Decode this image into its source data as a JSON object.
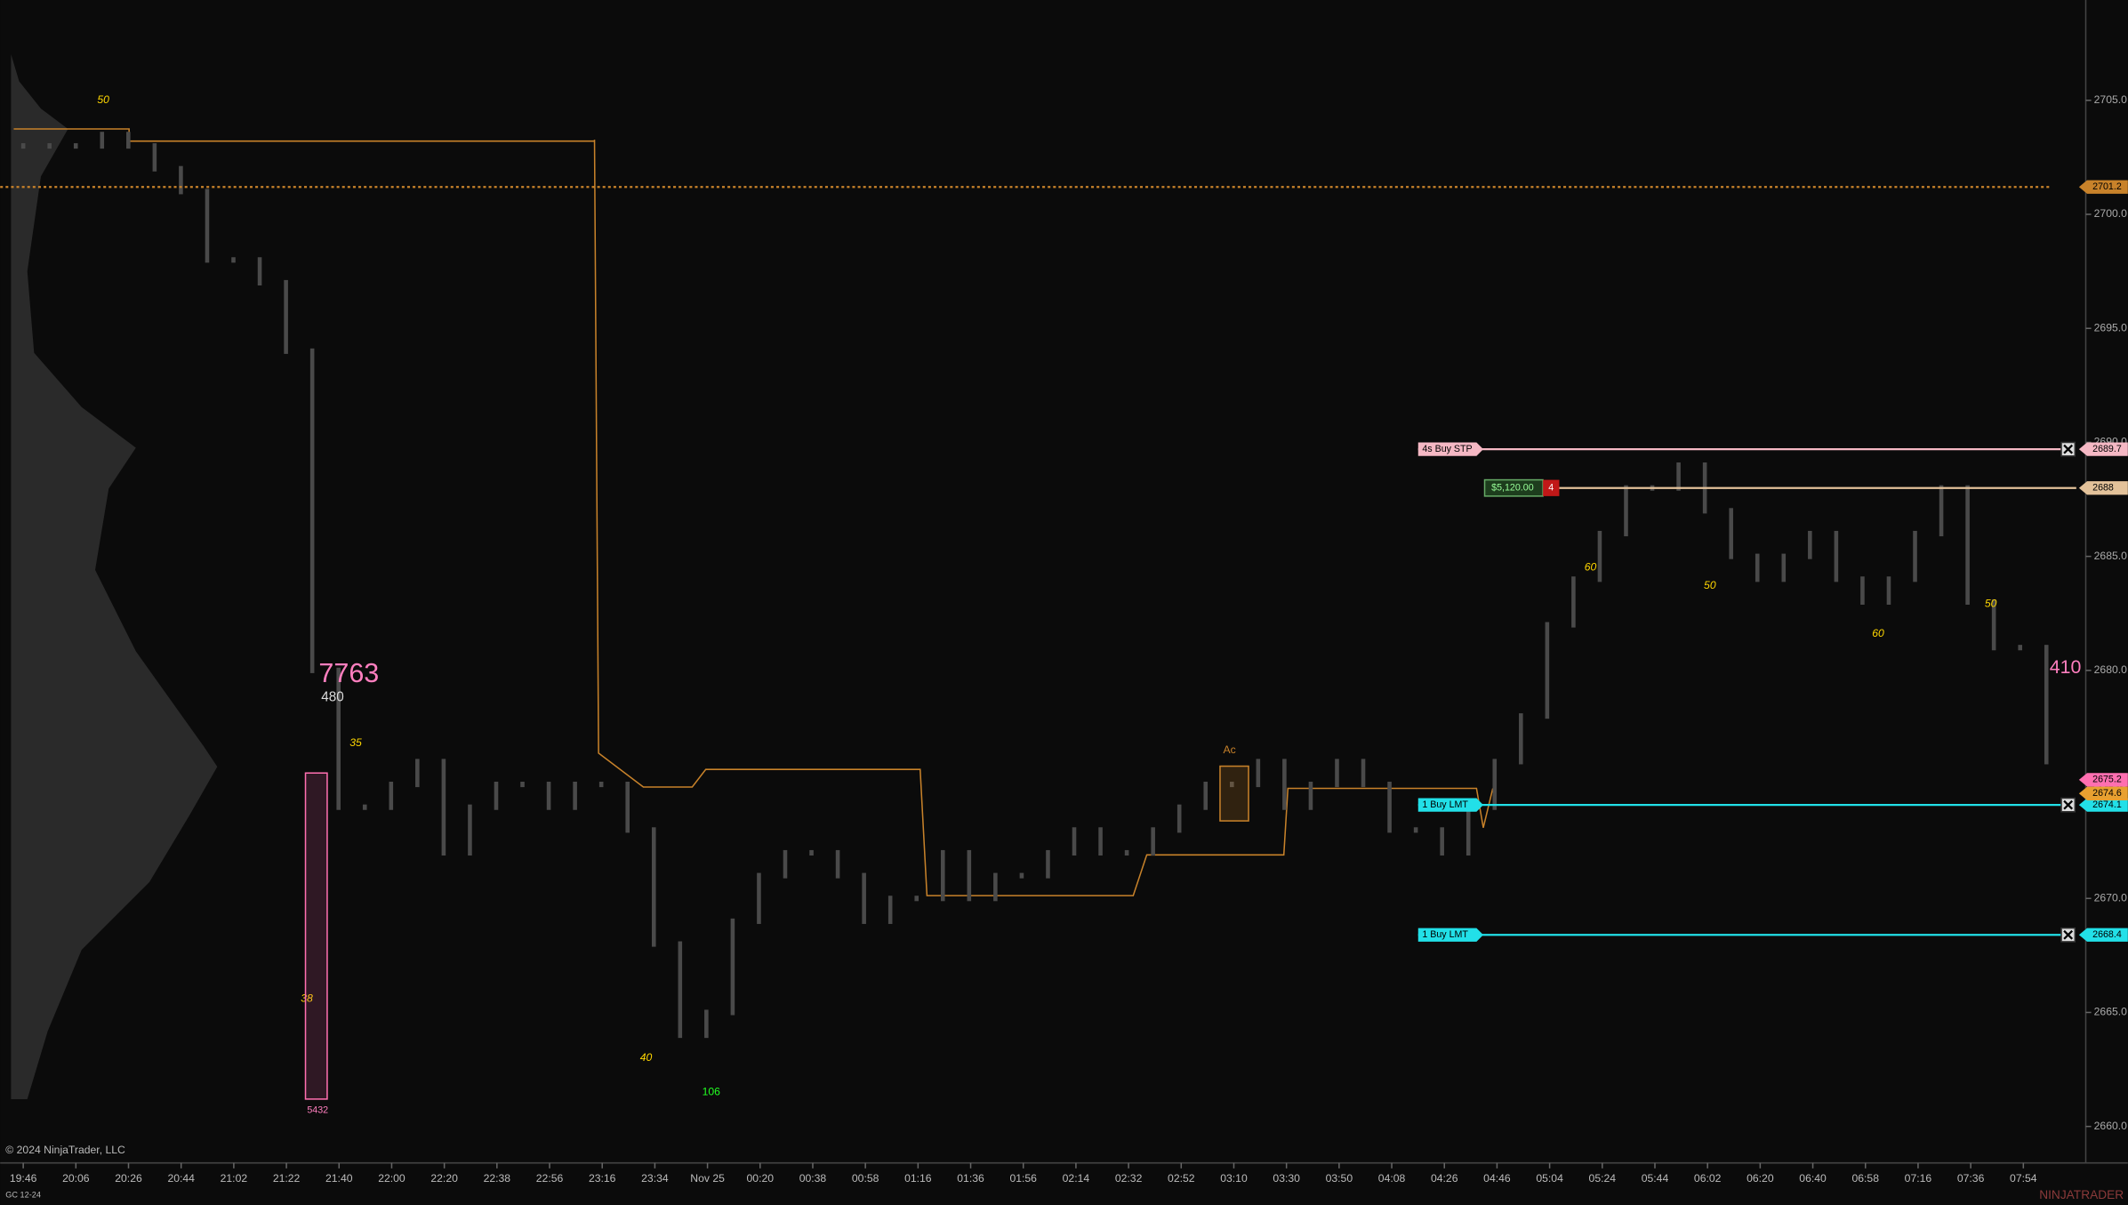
{
  "chart": {
    "instrument": "GC 12-24",
    "copyright": "© 2024 NinjaTrader, LLC",
    "brand": "NINJATRADER",
    "ylim": [
      2658.4,
      2709.4
    ],
    "yticks": [
      {
        "value": 2660,
        "label": "2660.0"
      },
      {
        "value": 2665,
        "label": "2665.0"
      },
      {
        "value": 2670,
        "label": "2670.0"
      },
      {
        "value": 2675,
        "label": "2675.0"
      },
      {
        "value": 2680,
        "label": "2680.0"
      },
      {
        "value": 2685,
        "label": "2685.0"
      },
      {
        "value": 2690,
        "label": "2690.0"
      },
      {
        "value": 2695,
        "label": "2695.0"
      },
      {
        "value": 2700,
        "label": "2700.0"
      },
      {
        "value": 2705,
        "label": "2705.0"
      }
    ],
    "time_labels": [
      "19:46",
      "20:06",
      "20:26",
      "20:44",
      "21:02",
      "21:22",
      "21:40",
      "22:00",
      "22:20",
      "22:38",
      "22:56",
      "23:16",
      "23:34",
      "Nov 25",
      "00:20",
      "00:38",
      "00:58",
      "01:16",
      "01:36",
      "01:56",
      "02:14",
      "02:32",
      "02:52",
      "03:10",
      "03:30",
      "03:50",
      "04:08",
      "04:26",
      "04:46",
      "05:04",
      "05:24",
      "05:44",
      "06:02",
      "06:20",
      "06:40",
      "06:58",
      "07:16",
      "07:36",
      "07:54"
    ],
    "price": [
      2703,
      2703,
      2703,
      2703.5,
      2703,
      2702,
      2701,
      2698,
      2698,
      2697,
      2694,
      2680,
      2674,
      2674,
      2675,
      2676,
      2672,
      2674,
      2675,
      2675,
      2674,
      2675,
      2675,
      2673,
      2668,
      2664,
      2665,
      2669,
      2671,
      2672,
      2672,
      2671,
      2669,
      2670,
      2670,
      2672,
      2670,
      2671,
      2671,
      2672,
      2673,
      2672,
      2672,
      2673,
      2674,
      2675,
      2675,
      2676,
      2674,
      2675,
      2676,
      2675,
      2673,
      2673,
      2672,
      2674,
      2676,
      2678,
      2682,
      2684,
      2686,
      2688,
      2688,
      2689,
      2687,
      2685,
      2684,
      2685,
      2686,
      2684,
      2683,
      2684,
      2686,
      2688,
      2683,
      2681,
      2681,
      2676
    ],
    "dotted_level": {
      "price": 2701.2
    },
    "orders": [
      {
        "label": "4s  Buy STP",
        "price": 2689.7
      },
      {
        "label": "1  Buy LMT",
        "price": 2674.1
      },
      {
        "label": "1  Buy LMT",
        "price": 2668.4
      }
    ],
    "position": {
      "pnl": "$5,120.00",
      "qty": "4",
      "price": 2688.0
    },
    "extra_tags": [
      2675.2,
      2674.6
    ],
    "annotations": [
      {
        "text": "7763",
        "price": 2679.8
      },
      {
        "text": "480",
        "price": 2678.8
      },
      {
        "text": "410",
        "price": 2680.1
      },
      {
        "text": "5432",
        "price": 2660.7
      },
      {
        "text": "50",
        "price": 2705
      },
      {
        "text": "35",
        "price": 2676.8
      },
      {
        "text": "38",
        "price": 2665.6
      },
      {
        "text": "40",
        "price": 2663
      },
      {
        "text": "60",
        "price": 2684.5
      },
      {
        "text": "50",
        "price": 2683.7
      },
      {
        "text": "60",
        "price": 2681.6
      },
      {
        "text": "50",
        "price": 2682.9
      },
      {
        "text": "106",
        "price": 2661.5
      },
      {
        "text": "Ac",
        "price": 2676.5
      }
    ]
  }
}
